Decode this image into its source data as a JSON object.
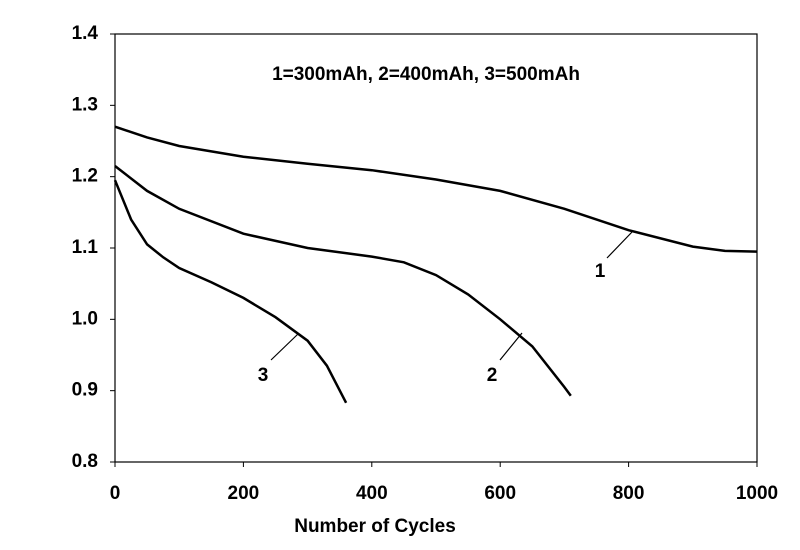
{
  "chart_data": {
    "type": "line",
    "annotation": "1=300mAh, 2=400mAh, 3=500mAh",
    "xlabel": "Number of Cycles",
    "xlim": [
      0,
      1000
    ],
    "xticks": [
      0,
      200,
      400,
      600,
      800,
      1000
    ],
    "ylim": [
      0.8,
      1.4
    ],
    "yticks": [
      0.8,
      0.9,
      {
        "value": 1,
        "label": "1.0"
      },
      1.1,
      1.2,
      1.3,
      1.4
    ],
    "grid": false,
    "series": [
      {
        "name": "1",
        "color": "#000000",
        "x": [
          0,
          50,
          100,
          200,
          300,
          400,
          500,
          600,
          700,
          800,
          900,
          950,
          1000
        ],
        "values": [
          1.27,
          1.255,
          1.243,
          1.228,
          1.218,
          1.209,
          1.196,
          1.18,
          1.155,
          1.125,
          1.102,
          1.096,
          1.095
        ]
      },
      {
        "name": "2",
        "color": "#000000",
        "x": [
          0,
          50,
          100,
          200,
          300,
          400,
          450,
          500,
          550,
          600,
          650,
          700,
          710
        ],
        "values": [
          1.215,
          1.18,
          1.155,
          1.12,
          1.1,
          1.088,
          1.08,
          1.062,
          1.035,
          1.0,
          0.962,
          0.905,
          0.893
        ]
      },
      {
        "name": "3",
        "color": "#000000",
        "x": [
          0,
          25,
          50,
          75,
          100,
          150,
          200,
          250,
          300,
          330,
          360
        ],
        "values": [
          1.195,
          1.14,
          1.105,
          1.087,
          1.072,
          1.052,
          1.03,
          1.003,
          0.97,
          0.935,
          0.883
        ]
      }
    ]
  }
}
